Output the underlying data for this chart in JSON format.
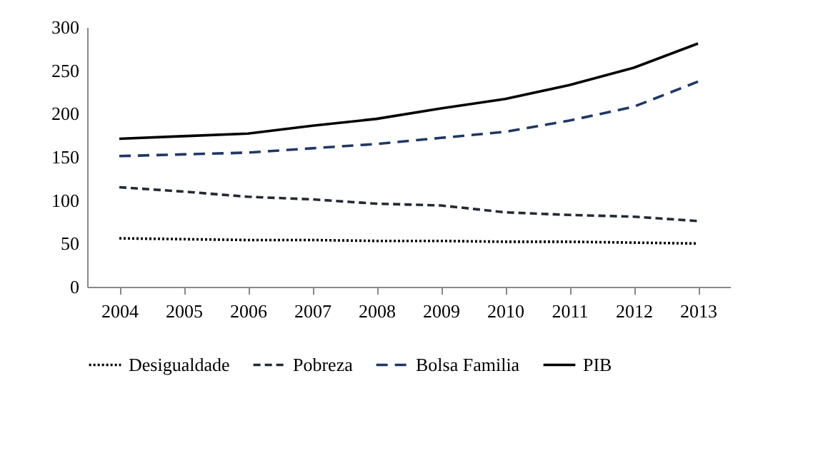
{
  "chart_data": {
    "type": "line",
    "categories": [
      "2004",
      "2005",
      "2006",
      "2007",
      "2008",
      "2009",
      "2010",
      "2011",
      "2012",
      "2013"
    ],
    "ylim": [
      0,
      300
    ],
    "yticks": [
      0,
      50,
      100,
      150,
      200,
      250,
      300
    ],
    "grid": false,
    "legend": "bottom",
    "marker": "none",
    "series": [
      {
        "name": "Desigualdade",
        "color": "#000000",
        "line_style": "dotted",
        "values": [
          56,
          55,
          54,
          54,
          53,
          53,
          52,
          52,
          51,
          50
        ]
      },
      {
        "name": "Pobreza",
        "color": "#222a35",
        "line_style": "dashed",
        "values": [
          115,
          110,
          104,
          101,
          96,
          94,
          86,
          83,
          81,
          76
        ]
      },
      {
        "name": "Bolsa Familia",
        "color": "#1f3864",
        "line_style": "dashed",
        "values": [
          151,
          153,
          155,
          160,
          165,
          172,
          179,
          192,
          208,
          237
        ]
      },
      {
        "name": "PIB",
        "color": "#000000",
        "line_style": "solid",
        "values": [
          171,
          174,
          177,
          186,
          194,
          206,
          217,
          233,
          253,
          281
        ]
      }
    ]
  }
}
